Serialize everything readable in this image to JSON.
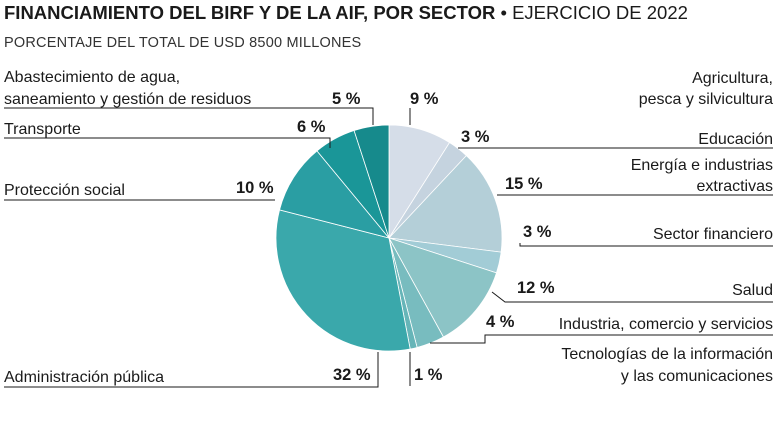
{
  "header": {
    "title_bold": "FINANCIAMIENTO DEL BIRF Y DE LA AIF, POR SECTOR",
    "title_sep": " • ",
    "title_light": "EJERCICIO DE 2022",
    "subtitle": "PORCENTAJE DEL TOTAL DE USD 8500 MILLONES"
  },
  "chart_data": {
    "type": "pie",
    "title": "FINANCIAMIENTO DEL BIRF Y DE LA AIF, POR SECTOR • EJERCICIO DE 2022",
    "subtitle": "PORCENTAJE DEL TOTAL DE USD 8500 MILLONES",
    "unit": "%",
    "slices": [
      {
        "label_lines": [
          "Agricultura,",
          "pesca y silvicultura"
        ],
        "value": 9,
        "value_label": "9 %",
        "color": "#d5dde8"
      },
      {
        "label_lines": [
          "Educación"
        ],
        "value": 3,
        "value_label": "3 %",
        "color": "#c5d3df"
      },
      {
        "label_lines": [
          "Energía e industrias",
          "extractivas"
        ],
        "value": 15,
        "value_label": "15 %",
        "color": "#b4cfd8"
      },
      {
        "label_lines": [
          "Sector financiero"
        ],
        "value": 3,
        "value_label": "3 %",
        "color": "#a2ccd6"
      },
      {
        "label_lines": [
          "Salud"
        ],
        "value": 12,
        "value_label": "12 %",
        "color": "#8cc4c6"
      },
      {
        "label_lines": [
          "Industria, comercio y servicios"
        ],
        "value": 4,
        "value_label": "4 %",
        "color": "#78bcbf"
      },
      {
        "label_lines": [
          "Tecnologías de la información",
          "y las comunicaciones"
        ],
        "value": 1,
        "value_label": "1 %",
        "color": "#66b5b8"
      },
      {
        "label_lines": [
          "Administración pública"
        ],
        "value": 32,
        "value_label": "32 %",
        "color": "#3aa8ab"
      },
      {
        "label_lines": [
          "Protección social"
        ],
        "value": 10,
        "value_label": "10 %",
        "color": "#2a9ea3"
      },
      {
        "label_lines": [
          "Transporte"
        ],
        "value": 6,
        "value_label": "6 %",
        "color": "#1a9698"
      },
      {
        "label_lines": [
          "Abastecimiento de agua,",
          "saneamiento y gestión de residuos"
        ],
        "value": 5,
        "value_label": "5 %",
        "color": "#168a8c"
      }
    ]
  }
}
